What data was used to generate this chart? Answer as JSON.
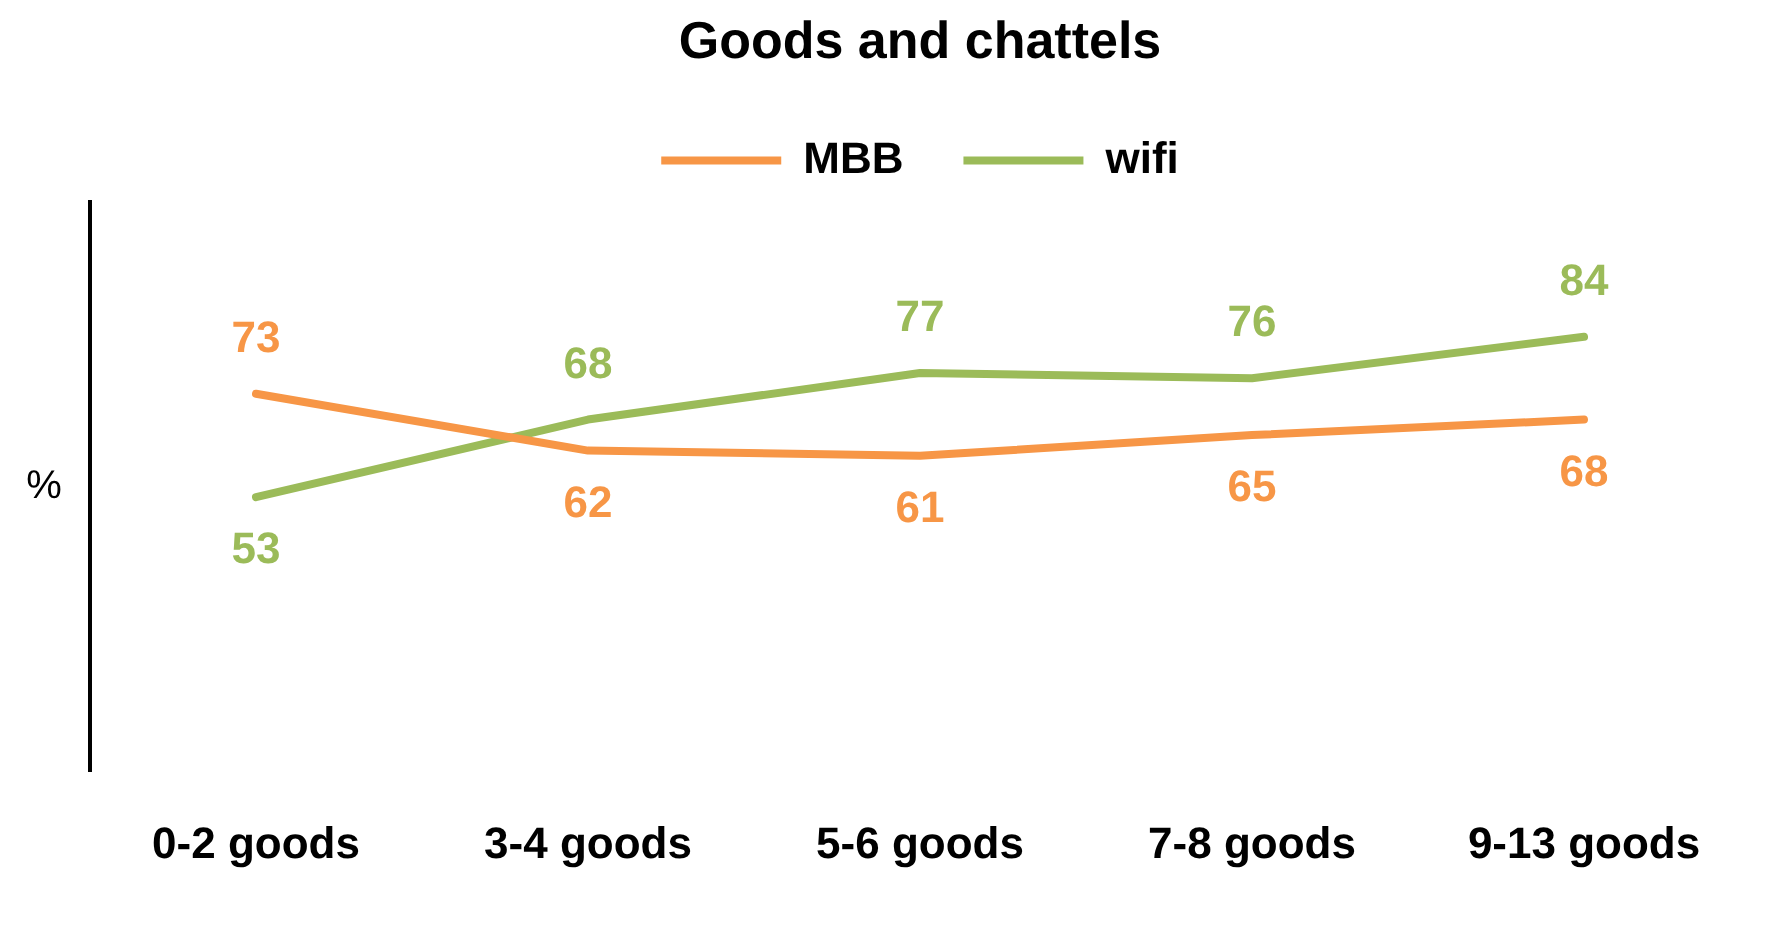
{
  "chart_data": {
    "type": "line",
    "title": "Goods and chattels",
    "ylabel": "%",
    "categories": [
      "0-2 goods",
      "3-4 goods",
      "5-6 goods",
      "7-8 goods",
      "9-13 goods"
    ],
    "series": [
      {
        "name": "MBB",
        "color": "#f79646",
        "values": [
          73,
          62,
          61,
          65,
          68
        ]
      },
      {
        "name": "wifi",
        "color": "#9bbb59",
        "values": [
          53,
          68,
          77,
          76,
          84
        ]
      }
    ],
    "ylim": [
      0,
      110
    ],
    "tick_labels": "x",
    "grid": false,
    "legend": "top",
    "marker": "none",
    "line_style": "solid",
    "data_labels": true
  }
}
